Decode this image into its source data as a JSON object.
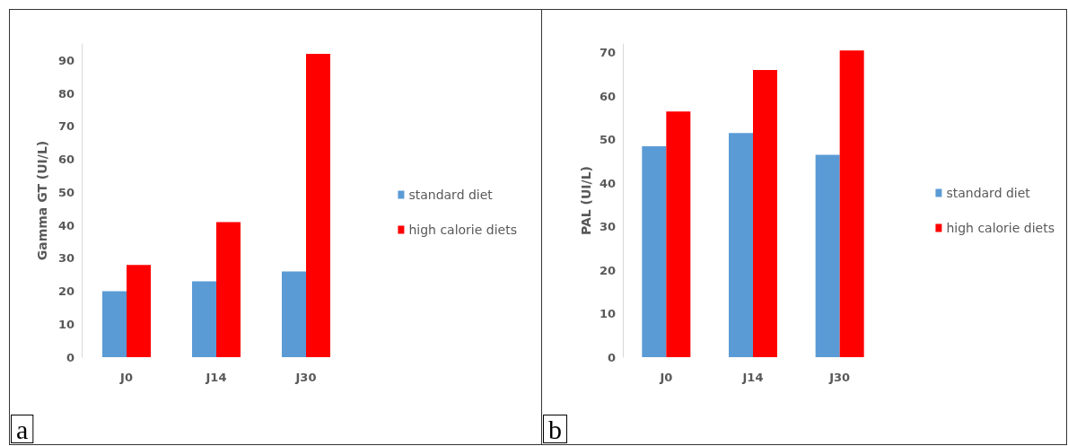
{
  "chart_data": [
    {
      "type": "bar",
      "categories": [
        "J0",
        "J14",
        "J30"
      ],
      "ylabel": "Gamma GT (UI/L)",
      "ylim": [
        0,
        95
      ],
      "yticks": [
        0,
        10,
        20,
        30,
        40,
        50,
        60,
        70,
        80,
        90
      ],
      "grid": false,
      "legend": "right",
      "annotations": [
        "a"
      ],
      "series": [
        {
          "name": "standard diet",
          "color": "#5b9bd5",
          "values": [
            20,
            23,
            26
          ]
        },
        {
          "name": "high calorie diets",
          "color": "#ff0000",
          "values": [
            28,
            41,
            92
          ]
        }
      ]
    },
    {
      "type": "bar",
      "categories": [
        "J0",
        "J14",
        "J30"
      ],
      "ylabel": "PAL (UI/L)",
      "ylim": [
        0,
        72
      ],
      "yticks": [
        0,
        10,
        20,
        30,
        40,
        50,
        60,
        70
      ],
      "grid": false,
      "legend": "right",
      "annotations": [
        "b"
      ],
      "series": [
        {
          "name": "standard diet",
          "color": "#5b9bd5",
          "values": [
            48.5,
            51.5,
            46.5
          ]
        },
        {
          "name": "high calorie diets",
          "color": "#ff0000",
          "values": [
            56.5,
            66,
            70.5
          ]
        }
      ]
    }
  ]
}
